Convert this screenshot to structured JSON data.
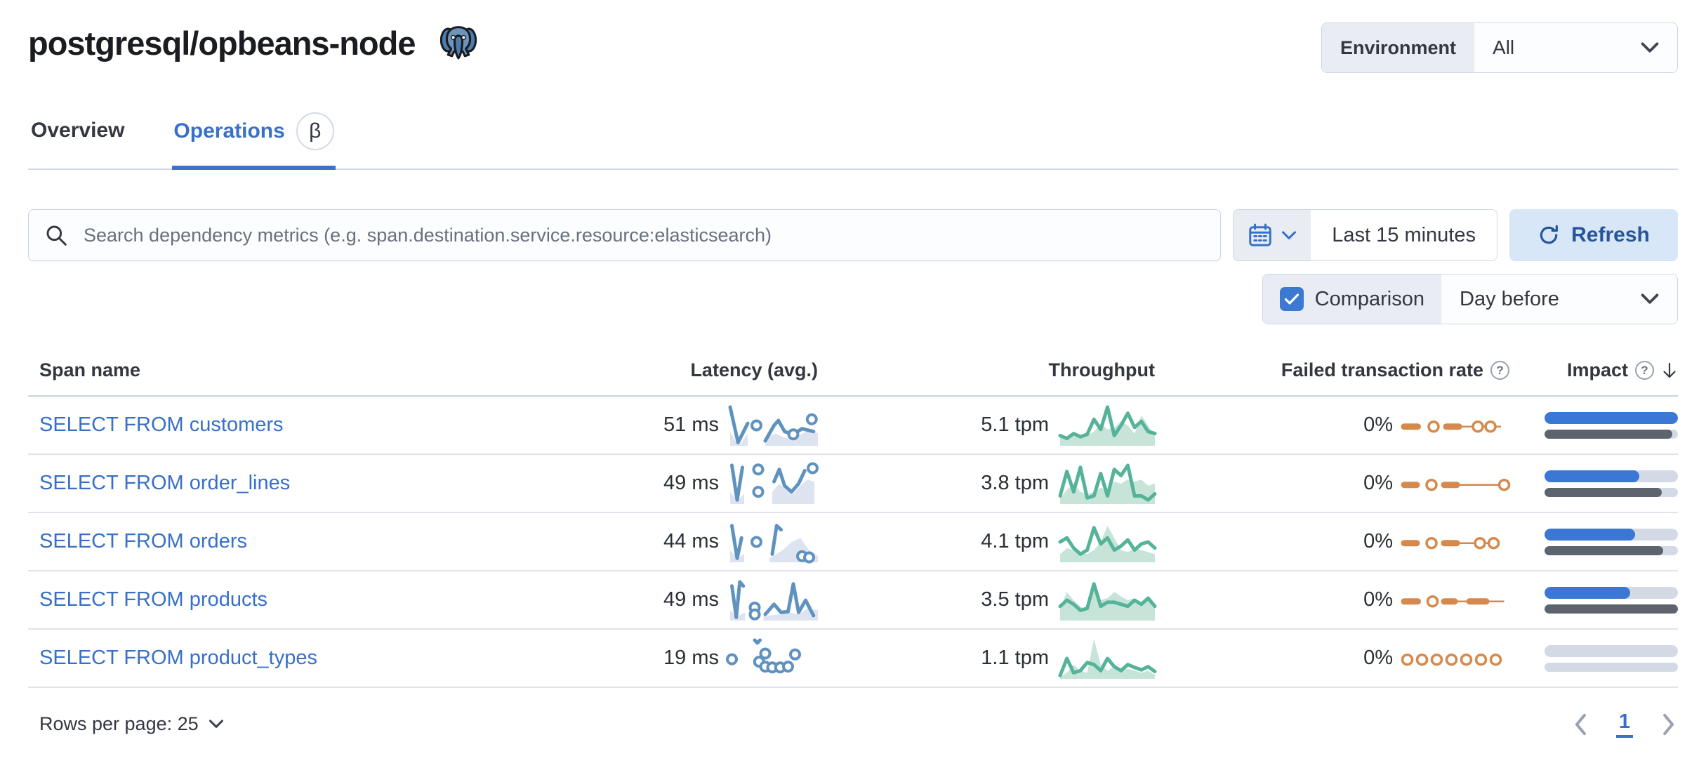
{
  "header": {
    "title": "postgresql/opbeans-node",
    "environment": {
      "label": "Environment",
      "value": "All"
    }
  },
  "tabs": [
    {
      "label": "Overview",
      "active": false
    },
    {
      "label": "Operations",
      "active": true,
      "badge": "β"
    }
  ],
  "toolbar": {
    "search_placeholder": "Search dependency metrics (e.g. span.destination.service.resource:elasticsearch)",
    "time_range": "Last 15 minutes",
    "refresh_label": "Refresh"
  },
  "comparison": {
    "label": "Comparison",
    "checked": true,
    "value": "Day before"
  },
  "table": {
    "columns": [
      {
        "label": "Span name"
      },
      {
        "label": "Latency (avg.)"
      },
      {
        "label": "Throughput"
      },
      {
        "label": "Failed transaction rate",
        "help": true
      },
      {
        "label": "Impact",
        "help": true,
        "sorted": "desc"
      }
    ],
    "rows": [
      {
        "name": "SELECT FROM customers",
        "latency": "51 ms",
        "throughput": "5.1 tpm",
        "failed_rate": "0%",
        "impact": {
          "current": 100,
          "previous": 96
        },
        "sparklines": {
          "latency": {
            "areas": [
              [
                [
                  0,
                  0.35
                ],
                [
                  0.06,
                  0.12
                ],
                [
                  0.12,
                  0.05
                ],
                [
                  0.2,
                  0.3
                ]
              ],
              [
                [
                  0.4,
                  0.2
                ],
                [
                  0.52,
                  0.3
                ],
                [
                  0.62,
                  0.2
                ],
                [
                  0.72,
                  0.15
                ],
                [
                  0.82,
                  0.3
                ],
                [
                  0.93,
                  0.4
                ],
                [
                  1,
                  0.3
                ]
              ]
            ],
            "lines": [
              [
                [
                  0.0,
                  0.95
                ],
                [
                  0.09,
                  0.08
                ],
                [
                  0.2,
                  0.55
                ]
              ],
              [
                [
                  0.4,
                  0.12
                ],
                [
                  0.5,
                  0.5
                ],
                [
                  0.55,
                  0.62
                ],
                [
                  0.62,
                  0.35
                ],
                [
                  0.72,
                  0.28
                ],
                [
                  0.82,
                  0.42
                ],
                [
                  0.95,
                  0.35
                ]
              ]
            ],
            "dots": [
              [
                0.3,
                0.5
              ],
              [
                0.72,
                0.28
              ],
              [
                0.93,
                0.65
              ]
            ]
          },
          "throughput": {
            "line": [
              0.25,
              0.18,
              0.3,
              0.22,
              0.28,
              0.65,
              0.4,
              0.95,
              0.25,
              0.5,
              0.8,
              0.45,
              0.6,
              0.35,
              0.3
            ],
            "comparison": [
              0.3,
              0.22,
              0.28,
              0.18,
              0.25,
              0.35,
              0.55,
              0.4,
              0.45,
              0.6,
              0.5,
              0.3,
              0.75,
              0.5,
              0.25
            ]
          },
          "failed": {
            "dashes": [
              [
                0,
                0.13
              ],
              [
                0.4,
                0.52
              ]
            ],
            "line": [
              [
                0.52,
                0.92
              ]
            ],
            "dots": [
              0.28,
              0.7,
              0.82
            ]
          }
        }
      },
      {
        "name": "SELECT FROM order_lines",
        "latency": "49 ms",
        "throughput": "3.8 tpm",
        "failed_rate": "0%",
        "impact": {
          "current": 71,
          "previous": 88
        },
        "sparklines": {
          "latency": {
            "areas": [
              [
                [
                  0,
                  0.3
                ],
                [
                  0.08,
                  0.08
                ],
                [
                  0.16,
                  0.25
                ]
              ],
              [
                [
                  0.48,
                  0.3
                ],
                [
                  0.56,
                  0.5
                ],
                [
                  0.64,
                  0.35
                ],
                [
                  0.72,
                  0.25
                ],
                [
                  0.8,
                  0.45
                ],
                [
                  0.88,
                  0.6
                ],
                [
                  0.96,
                  0.55
                ]
              ]
            ],
            "lines": [
              [
                [
                  0.02,
                  0.95
                ],
                [
                  0.08,
                  0.1
                ],
                [
                  0.14,
                  0.9
                ]
              ],
              [
                [
                  0.5,
                  0.55
                ],
                [
                  0.56,
                  0.85
                ],
                [
                  0.62,
                  0.45
                ],
                [
                  0.7,
                  0.3
                ],
                [
                  0.78,
                  0.5
                ],
                [
                  0.85,
                  0.82
                ]
              ]
            ],
            "dots": [
              [
                0.32,
                0.85
              ],
              [
                0.32,
                0.3
              ],
              [
                0.94,
                0.88
              ]
            ]
          },
          "throughput": {
            "line": [
              0.2,
              0.8,
              0.3,
              0.9,
              0.15,
              0.2,
              0.75,
              0.2,
              0.85,
              0.7,
              0.95,
              0.2,
              0.2,
              0.1,
              0.25
            ],
            "comparison": [
              0.15,
              0.35,
              0.5,
              0.3,
              0.25,
              0.3,
              0.4,
              0.35,
              0.55,
              0.5,
              0.6,
              0.55,
              0.6,
              0.45,
              0.5
            ]
          },
          "failed": {
            "dashes": [
              [
                0,
                0.12
              ],
              [
                0.38,
                0.5
              ]
            ],
            "line": [
              [
                0.5,
                0.95
              ]
            ],
            "dots": [
              0.26,
              0.95
            ]
          }
        }
      },
      {
        "name": "SELECT FROM orders",
        "latency": "44 ms",
        "throughput": "4.1 tpm",
        "failed_rate": "0%",
        "impact": {
          "current": 68,
          "previous": 89
        },
        "sparklines": {
          "latency": {
            "areas": [
              [
                [
                  0,
                  0.3
                ],
                [
                  0.08,
                  0.1
                ],
                [
                  0.16,
                  0.2
                ]
              ],
              [
                [
                  0.45,
                  0.1
                ],
                [
                  0.6,
                  0.3
                ],
                [
                  0.7,
                  0.5
                ],
                [
                  0.8,
                  0.6
                ],
                [
                  0.9,
                  0.3
                ],
                [
                  1,
                  0.15
                ]
              ]
            ],
            "lines": [
              [
                [
                  0.02,
                  0.9
                ],
                [
                  0.08,
                  0.1
                ],
                [
                  0.13,
                  0.6
                ]
              ],
              [
                [
                  0.48,
                  0.2
                ],
                [
                  0.53,
                  0.9
                ],
                [
                  0.58,
                  0.8
                ]
              ]
            ],
            "dots": [
              [
                0.3,
                0.5
              ],
              [
                0.82,
                0.15
              ],
              [
                0.9,
                0.12
              ]
            ]
          },
          "throughput": {
            "line": [
              0.5,
              0.6,
              0.35,
              0.2,
              0.3,
              0.85,
              0.45,
              0.6,
              0.3,
              0.4,
              0.55,
              0.3,
              0.45,
              0.5,
              0.35
            ],
            "comparison": [
              0.2,
              0.35,
              0.3,
              0.25,
              0.2,
              0.3,
              0.5,
              0.9,
              0.6,
              0.3,
              0.25,
              0.35,
              0.3,
              0.25,
              0.2
            ]
          },
          "failed": {
            "dashes": [
              [
                0,
                0.12
              ],
              [
                0.38,
                0.5
              ]
            ],
            "line": [
              [
                0.5,
                0.88
              ]
            ],
            "dots": [
              0.26,
              0.72,
              0.85
            ]
          }
        }
      },
      {
        "name": "SELECT FROM products",
        "latency": "49 ms",
        "throughput": "3.5 tpm",
        "failed_rate": "0%",
        "impact": {
          "current": 64,
          "previous": 100
        },
        "sparklines": {
          "latency": {
            "areas": [
              [
                [
                  0,
                  0.25
                ],
                [
                  0.08,
                  0.1
                ],
                [
                  0.17,
                  0.2
                ]
              ],
              [
                [
                  0.38,
                  0.1
                ],
                [
                  0.55,
                  0.15
                ],
                [
                  0.68,
                  0.2
                ],
                [
                  0.78,
                  0.15
                ],
                [
                  0.88,
                  0.3
                ],
                [
                  1,
                  0.25
                ]
              ]
            ],
            "lines": [
              [
                [
                  0.02,
                  0.85
                ],
                [
                  0.07,
                  0.08
                ],
                [
                  0.11,
                  0.95
                ],
                [
                  0.15,
                  0.85
                ]
              ],
              [
                [
                  0.4,
                  0.15
                ],
                [
                  0.5,
                  0.4
                ],
                [
                  0.58,
                  0.2
                ],
                [
                  0.66,
                  0.22
                ],
                [
                  0.72,
                  0.9
                ],
                [
                  0.78,
                  0.2
                ],
                [
                  0.86,
                  0.5
                ],
                [
                  0.95,
                  0.12
                ]
              ]
            ],
            "dots": [
              [
                0.28,
                0.32
              ],
              [
                0.28,
                0.15
              ]
            ]
          },
          "throughput": {
            "line": [
              0.35,
              0.5,
              0.4,
              0.25,
              0.3,
              0.9,
              0.35,
              0.45,
              0.45,
              0.4,
              0.35,
              0.5,
              0.4,
              0.55,
              0.35
            ],
            "comparison": [
              0.3,
              0.7,
              0.5,
              0.35,
              0.25,
              0.95,
              0.5,
              0.55,
              0.7,
              0.6,
              0.5,
              0.55,
              0.4,
              0.5,
              0.3
            ]
          },
          "failed": {
            "dashes": [
              [
                0,
                0.13
              ],
              [
                0.38,
                0.48
              ],
              [
                0.62,
                0.78
              ]
            ],
            "line": [
              [
                0.48,
                0.95
              ]
            ],
            "dots": [
              0.27
            ]
          }
        }
      },
      {
        "name": "SELECT FROM product_types",
        "latency": "19 ms",
        "throughput": "1.1 tpm",
        "failed_rate": "0%",
        "impact": {
          "current": 0,
          "previous": 0
        },
        "sparklines": {
          "latency": {
            "areas": [],
            "lines": [
              [
                [
                  0.28,
                  0.95
                ],
                [
                  0.31,
                  0.88
                ],
                [
                  0.34,
                  0.95
                ]
              ]
            ],
            "dots": [
              [
                0.02,
                0.48
              ],
              [
                0.33,
                0.42
              ],
              [
                0.4,
                0.62
              ],
              [
                0.4,
                0.3
              ],
              [
                0.48,
                0.28
              ],
              [
                0.57,
                0.28
              ],
              [
                0.66,
                0.3
              ],
              [
                0.74,
                0.6
              ]
            ]
          },
          "throughput": {
            "line": [
              0.08,
              0.5,
              0.15,
              0.2,
              0.4,
              0.35,
              0.2,
              0.5,
              0.3,
              0.2,
              0.35,
              0.28,
              0.22,
              0.3,
              0.18
            ],
            "comparison": [
              0.05,
              0.15,
              0.35,
              0.2,
              0.15,
              0.98,
              0.35,
              0.2,
              0.3,
              0.2,
              0.25,
              0.2,
              0.15,
              0.2,
              0.1
            ]
          },
          "failed": {
            "dashes": [],
            "line": [],
            "dots": [
              0.03,
              0.17,
              0.31,
              0.45,
              0.59,
              0.73,
              0.87
            ]
          }
        }
      }
    ]
  },
  "footer": {
    "rows_per_page_label": "Rows per page: 25",
    "page": "1"
  },
  "colors": {
    "primary": "#3870c8",
    "checkbox_blue": "#3b79d3",
    "refresh_bg": "#d7e7f7",
    "refresh_text": "#27549b",
    "vis_blue": "#6092c0",
    "vis_blue_fill": "#dde4f0",
    "vis_green": "#54b399",
    "vis_green_fill": "#c7e4d9",
    "vis_orange": "#d6894c",
    "impact_blue": "#3b77d4",
    "impact_gray": "#5d646e",
    "bar_track": "#d3dae6"
  }
}
